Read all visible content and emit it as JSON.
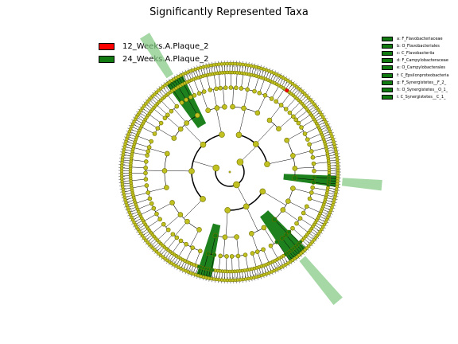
{
  "title": "Significantly Represented Taxa",
  "classes": [
    {
      "name": "12_Weeks.A.Plaque_2",
      "color": "#ff0000"
    },
    {
      "name": "24_Weeks.A.Plaque_2",
      "color": "#117a11"
    }
  ],
  "clade_labels": [
    "a: F_Flavobacteriaceae",
    "b: O_Flavobacteriales",
    "c: C_Flavobacteriia",
    "d: F_Campylobacteraceae",
    "e: O_Campylobacterales",
    "f: C_Epsilonproteobacteria",
    "g: F_Synergistetes__F_2_",
    "h: O_Synergistetes__O_1_",
    "i: C_Synergistetes__C_1_"
  ],
  "colors": {
    "node": "#c0c020",
    "node_edge": "#707000",
    "highlight": "#117a11",
    "highlight_band": "#7fc77f",
    "red": "#ff0000"
  }
}
